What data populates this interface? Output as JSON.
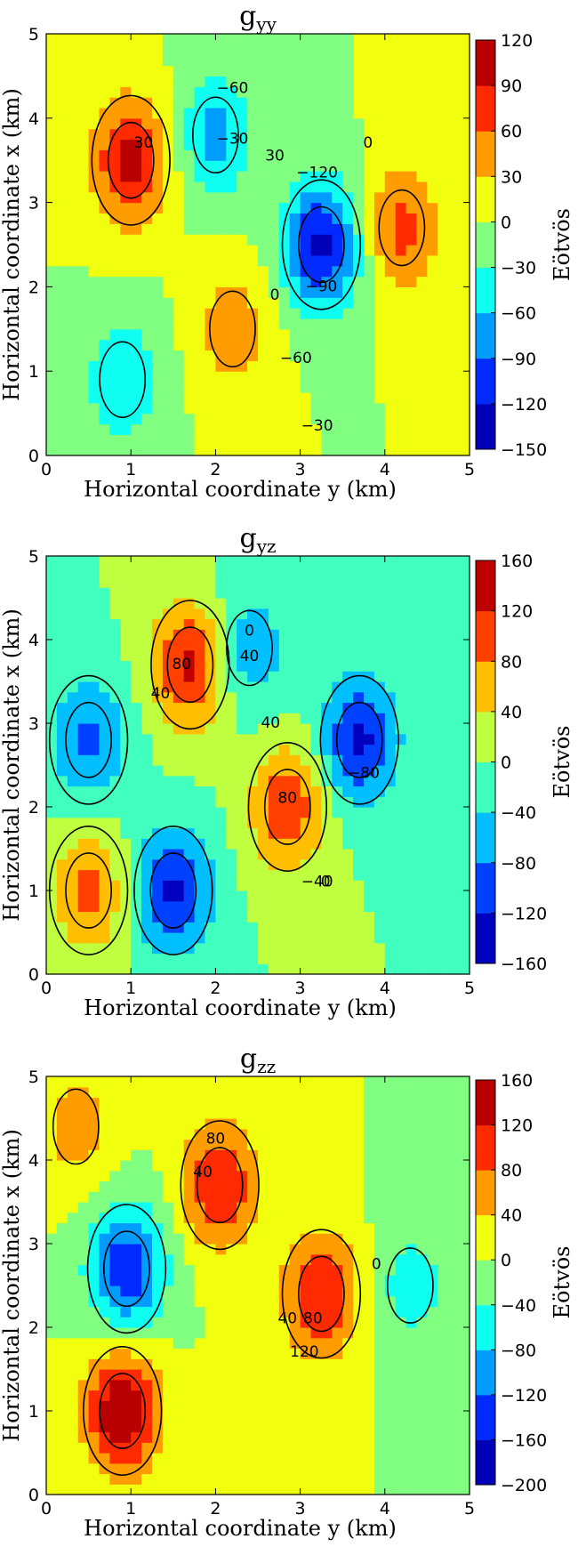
{
  "figure": {
    "panels": [
      {
        "id": "gyy",
        "title_main": "g",
        "title_sub": "yy",
        "xlabel": "Horizontal coordinate y (km)",
        "ylabel": "Horizontal coordinate x (km)",
        "colorbar_label": "Eötvös",
        "xticks": [
          "0",
          "1",
          "2",
          "3",
          "4",
          "5"
        ],
        "yticks": [
          "0",
          "1",
          "2",
          "3",
          "4",
          "5"
        ],
        "colorbar_ticks": [
          "120",
          "90",
          "60",
          "30",
          "0",
          "−30",
          "−60",
          "−90",
          "−120",
          "−150"
        ],
        "contour_labels": [
          "−60",
          "−30",
          "30",
          "30",
          "0",
          "−120",
          "−90",
          "0",
          "−60",
          "−30"
        ]
      },
      {
        "id": "gyz",
        "title_main": "g",
        "title_sub": "yz",
        "xlabel": "Horizontal coordinate y (km)",
        "ylabel": "Horizontal coordinate x (km)",
        "colorbar_label": "Eötvös",
        "xticks": [
          "0",
          "1",
          "2",
          "3",
          "4",
          "5"
        ],
        "yticks": [
          "0",
          "1",
          "2",
          "3",
          "4",
          "5"
        ],
        "colorbar_ticks": [
          "160",
          "120",
          "80",
          "40",
          "0",
          "−40",
          "−80",
          "−120",
          "−160"
        ],
        "contour_labels": [
          "40",
          "80",
          "0",
          "40",
          "40",
          "80",
          "−80",
          "−40",
          "0"
        ]
      },
      {
        "id": "gzz",
        "title_main": "g",
        "title_sub": "zz",
        "xlabel": "Horizontal coordinate y (km)",
        "ylabel": "Horizontal coordinate x (km)",
        "colorbar_label": "Eötvös",
        "xticks": [
          "0",
          "1",
          "2",
          "3",
          "4",
          "5"
        ],
        "yticks": [
          "0",
          "1",
          "2",
          "3",
          "4",
          "5"
        ],
        "colorbar_ticks": [
          "160",
          "120",
          "80",
          "40",
          "0",
          "−40",
          "−80",
          "−120",
          "−160",
          "−200"
        ],
        "contour_labels": [
          "40",
          "80",
          "40",
          "80",
          "120",
          "0"
        ]
      }
    ]
  },
  "chart_data": [
    {
      "type": "heatmap",
      "title": "g_yy",
      "xlabel": "Horizontal coordinate y (km)",
      "ylabel": "Horizontal coordinate x (km)",
      "xlim": [
        0,
        5
      ],
      "ylim": [
        0,
        5
      ],
      "colorbar": {
        "label": "Eötvös",
        "min": -150,
        "max": 120,
        "levels": [
          -150,
          -120,
          -90,
          -60,
          -30,
          0,
          30,
          60,
          90,
          120
        ]
      },
      "contour_levels_labeled": [
        -120,
        -90,
        -60,
        -30,
        0,
        30
      ],
      "features": [
        {
          "kind": "positive_anomaly",
          "center_y_km": 1.0,
          "center_x_km": 3.5,
          "peak_value": 100
        },
        {
          "kind": "negative_anomaly",
          "center_y_km": 2.0,
          "center_x_km": 3.8,
          "peak_value": -70
        },
        {
          "kind": "negative_anomaly",
          "center_y_km": 3.25,
          "center_x_km": 2.5,
          "peak_value": -130
        },
        {
          "kind": "positive_anomaly",
          "center_y_km": 4.2,
          "center_x_km": 2.7,
          "peak_value": 70
        },
        {
          "kind": "positive_anomaly",
          "center_y_km": 2.2,
          "center_x_km": 1.5,
          "peak_value": 50
        },
        {
          "kind": "negative_anomaly",
          "center_y_km": 0.9,
          "center_x_km": 0.9,
          "peak_value": -60
        }
      ]
    },
    {
      "type": "heatmap",
      "title": "g_yz",
      "xlabel": "Horizontal coordinate y (km)",
      "ylabel": "Horizontal coordinate x (km)",
      "xlim": [
        0,
        5
      ],
      "ylim": [
        0,
        5
      ],
      "colorbar": {
        "label": "Eötvös",
        "min": -160,
        "max": 160,
        "levels": [
          -160,
          -120,
          -80,
          -40,
          0,
          40,
          80,
          120,
          160
        ]
      },
      "contour_levels_labeled": [
        -80,
        -40,
        0,
        40,
        80
      ],
      "features": [
        {
          "kind": "positive_anomaly",
          "center_y_km": 1.7,
          "center_x_km": 3.7,
          "peak_value": 130
        },
        {
          "kind": "negative_anomaly",
          "center_y_km": 2.4,
          "center_x_km": 3.9,
          "peak_value": -70
        },
        {
          "kind": "positive_anomaly",
          "center_y_km": 2.85,
          "center_x_km": 2.0,
          "peak_value": 110
        },
        {
          "kind": "negative_anomaly",
          "center_y_km": 3.7,
          "center_x_km": 2.8,
          "peak_value": -130
        },
        {
          "kind": "negative_anomaly",
          "center_y_km": 1.5,
          "center_x_km": 1.0,
          "peak_value": -130
        },
        {
          "kind": "negative_anomaly",
          "center_y_km": 0.5,
          "center_x_km": 2.8,
          "peak_value": -90
        },
        {
          "kind": "positive_anomaly",
          "center_y_km": 0.5,
          "center_x_km": 1.0,
          "peak_value": 90
        }
      ]
    },
    {
      "type": "heatmap",
      "title": "g_zz",
      "xlabel": "Horizontal coordinate y (km)",
      "ylabel": "Horizontal coordinate x (km)",
      "xlim": [
        0,
        5
      ],
      "ylim": [
        0,
        5
      ],
      "colorbar": {
        "label": "Eötvös",
        "min": -200,
        "max": 160,
        "levels": [
          -200,
          -160,
          -120,
          -80,
          -40,
          0,
          40,
          80,
          120,
          160
        ]
      },
      "contour_levels_labeled": [
        0,
        40,
        80,
        120
      ],
      "features": [
        {
          "kind": "positive_anomaly",
          "center_y_km": 2.05,
          "center_x_km": 3.7,
          "peak_value": 120
        },
        {
          "kind": "positive_anomaly",
          "center_y_km": 3.25,
          "center_x_km": 2.4,
          "peak_value": 120
        },
        {
          "kind": "negative_anomaly",
          "center_y_km": 0.95,
          "center_x_km": 2.7,
          "peak_value": -150
        },
        {
          "kind": "positive_anomaly",
          "center_y_km": 0.9,
          "center_x_km": 1.0,
          "peak_value": 160
        },
        {
          "kind": "positive_anomaly",
          "center_y_km": 0.35,
          "center_x_km": 4.4,
          "peak_value": 60
        },
        {
          "kind": "negative_anomaly",
          "center_y_km": 4.3,
          "center_x_km": 2.5,
          "peak_value": -60
        }
      ]
    }
  ]
}
